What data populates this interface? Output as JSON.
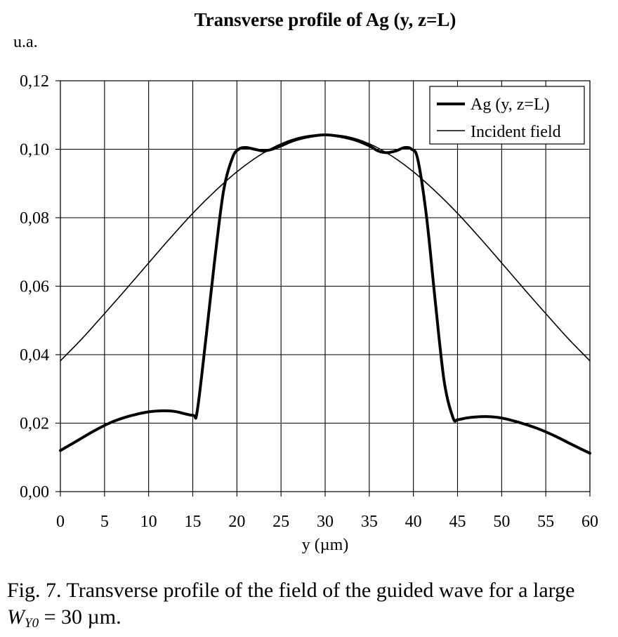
{
  "chart_data": {
    "type": "line",
    "title": "Transverse profile of Ag (y, z=L)",
    "ylabel": "u.a.",
    "xlabel": "y (µm)",
    "xlim": [
      0,
      60
    ],
    "ylim": [
      0,
      0.12
    ],
    "xticks": [
      0,
      5,
      10,
      15,
      20,
      25,
      30,
      35,
      40,
      45,
      50,
      55,
      60
    ],
    "xtick_labels": [
      "0",
      "5",
      "10",
      "15",
      "20",
      "25",
      "30",
      "35",
      "40",
      "45",
      "50",
      "55",
      "60"
    ],
    "yticks": [
      0,
      0.02,
      0.04,
      0.06,
      0.08,
      0.1,
      0.12
    ],
    "ytick_labels": [
      "0,00",
      "0,02",
      "0,04",
      "0,06",
      "0,08",
      "0,10",
      "0,12"
    ],
    "grid": true,
    "legend_position": "top-right",
    "series": [
      {
        "name": "Ag (y, z=L)",
        "style": "thick",
        "x": [
          0,
          2,
          4,
          6,
          8,
          10,
          11.5,
          13,
          15,
          15.5,
          16.5,
          17.5,
          18.5,
          19.5,
          20.2,
          21,
          22,
          23,
          24,
          25,
          27,
          30,
          33,
          35,
          36,
          37,
          38,
          39,
          39.8,
          40.5,
          41.5,
          42.5,
          43.5,
          44.5,
          45,
          46,
          47,
          48.5,
          50,
          52,
          54,
          56,
          58,
          60
        ],
        "y": [
          0.012,
          0.015,
          0.018,
          0.0205,
          0.0222,
          0.0233,
          0.0236,
          0.0234,
          0.0223,
          0.0235,
          0.045,
          0.068,
          0.088,
          0.0975,
          0.1,
          0.1005,
          0.1,
          0.0995,
          0.1,
          0.101,
          0.103,
          0.1042,
          0.103,
          0.101,
          0.0995,
          0.099,
          0.0995,
          0.1005,
          0.1,
          0.097,
          0.08,
          0.055,
          0.032,
          0.0215,
          0.021,
          0.0215,
          0.0218,
          0.0219,
          0.0215,
          0.0202,
          0.0185,
          0.0163,
          0.0137,
          0.0112
        ]
      },
      {
        "name": "Incident field",
        "style": "thin",
        "x": [
          0,
          2.5,
          5,
          7.5,
          10,
          12.5,
          15,
          17.5,
          20,
          22.5,
          25,
          27.5,
          30,
          32.5,
          35,
          37.5,
          40,
          42.5,
          45,
          47.5,
          50,
          52.5,
          55,
          57.5,
          60
        ],
        "y": [
          0.0382,
          0.0448,
          0.052,
          0.0593,
          0.0668,
          0.0742,
          0.0813,
          0.0877,
          0.0934,
          0.0981,
          0.1016,
          0.1037,
          0.1043,
          0.1037,
          0.1016,
          0.0981,
          0.0934,
          0.0877,
          0.0813,
          0.0742,
          0.0668,
          0.0593,
          0.052,
          0.0448,
          0.0382
        ]
      }
    ]
  },
  "caption": {
    "prefix": "Fig. 7. Transverse profile of the field of the guided wave for a large ",
    "var": "W",
    "sub": "Y0",
    "suffix": " = 30 µm."
  }
}
